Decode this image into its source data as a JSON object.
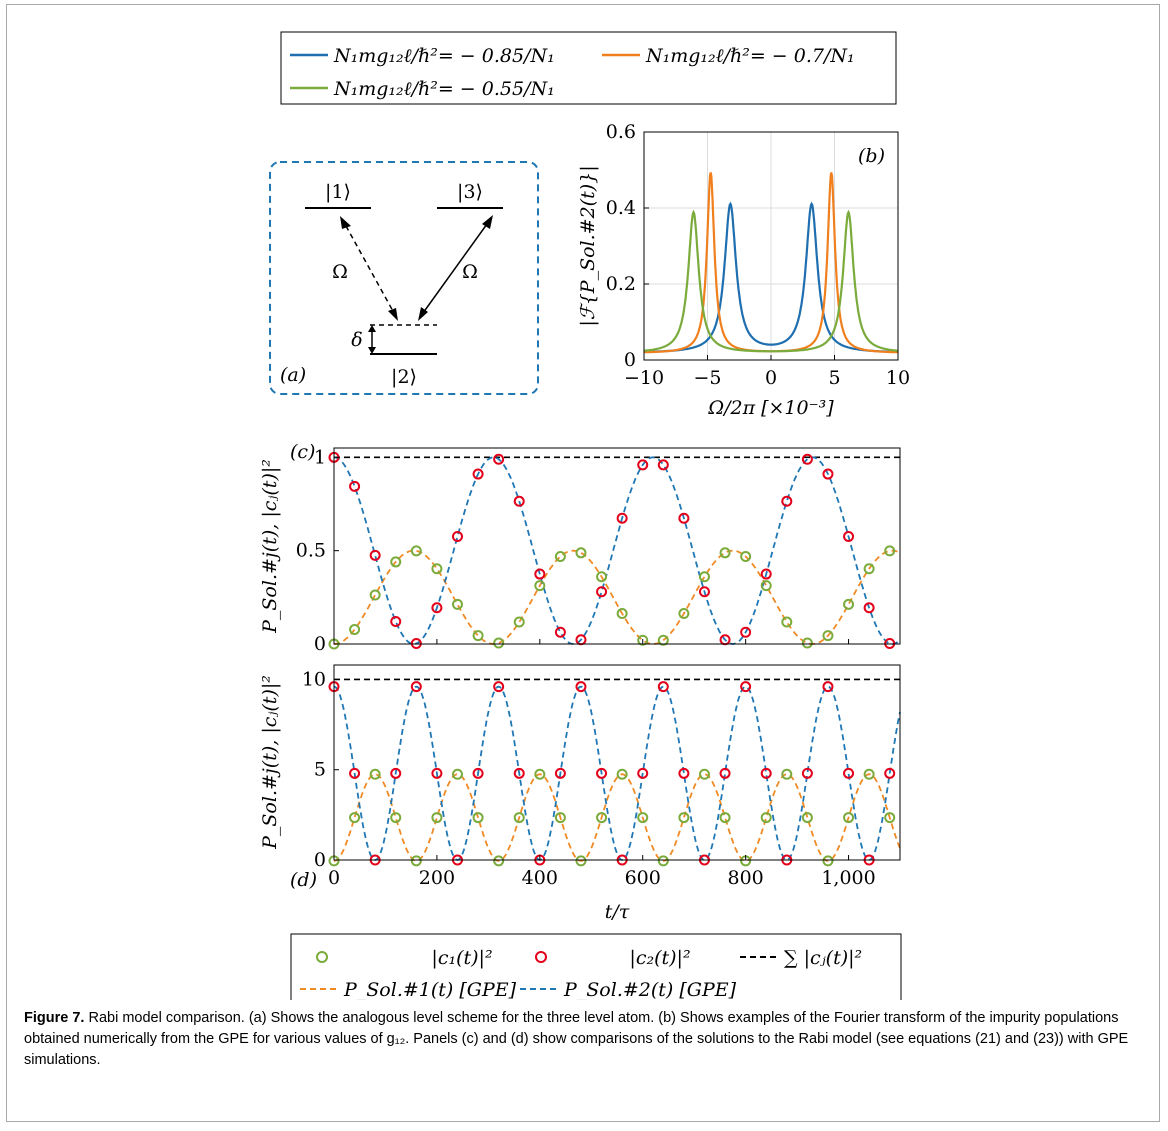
{
  "colors": {
    "blue": "#1f6fb0",
    "orange": "#f07f1d",
    "green": "#7aab3c",
    "red": "#e3001b",
    "dashed_blue": "#1f77b4",
    "dashed_orange": "#f08a24",
    "black": "#000000"
  },
  "legend_top": {
    "entries": [
      {
        "label": "N₁mg₁₂ℓ/ℏ²= − 0.85/N₁",
        "color": "blue"
      },
      {
        "label": "N₁mg₁₂ℓ/ℏ²= − 0.7/N₁",
        "color": "orange"
      },
      {
        "label": "N₁mg₁₂ℓ/ℏ²= − 0.55/N₁",
        "color": "green"
      }
    ]
  },
  "panel_a": {
    "tag": "(a)",
    "level1": "|1⟩",
    "level2": "|2⟩",
    "level3": "|3⟩",
    "omega_left": "Ω",
    "omega_right": "Ω",
    "delta": "δ"
  },
  "legend_bottom": {
    "c1": "|c₁(t)|²",
    "c2": "|c₂(t)|²",
    "sum": "∑ |cⱼ(t)|²",
    "p1": "P_Sol.#1(t) [GPE]",
    "p2": "P_Sol.#2(t) [GPE]"
  },
  "caption": {
    "bold": "Figure 7.",
    "text": "Rabi model comparison. (a) Shows the analogous level scheme for the three level atom. (b) Shows examples of the Fourier transform of the impurity populations obtained numerically from the GPE for various values of g₁₂. Panels (c) and (d) show comparisons of the solutions to the Rabi model (see equations (21) and (23)) with GPE simulations."
  },
  "chart_data": [
    {
      "id": "b",
      "type": "line",
      "tag": "(b)",
      "xlabel": "Ω/2π [×10⁻³]",
      "ylabel": "|ℱ{P_Sol.#2(t)}|",
      "xlim": [
        -10,
        10
      ],
      "ylim": [
        0,
        0.6
      ],
      "xticks": [
        -10,
        -5,
        0,
        5,
        10
      ],
      "yticks": [
        0,
        0.2,
        0.4,
        0.6
      ],
      "ytick_labels": [
        "0",
        "0.2",
        "0.4",
        "0.6"
      ],
      "grid": true,
      "series": [
        {
          "name": "N₁mg₁₂ℓ/ℏ²= − 0.85/N₁",
          "color": "blue",
          "peak": 3.2,
          "height": 0.39,
          "width": 0.55
        },
        {
          "name": "N₁mg₁₂ℓ/ℏ²= − 0.7/N₁",
          "color": "orange",
          "peak": 4.75,
          "height": 0.475,
          "width": 0.35
        },
        {
          "name": "N₁mg₁₂ℓ/ℏ²= − 0.55/N₁",
          "color": "green",
          "peak": 6.1,
          "height": 0.37,
          "width": 0.5
        }
      ]
    },
    {
      "id": "c",
      "type": "line",
      "tag": "(c)",
      "ylabel": "P_Sol.#j(t), |cⱼ(t)|²",
      "xlim": [
        0,
        1100
      ],
      "ylim": [
        0,
        1.05
      ],
      "yticks": [
        0,
        0.5,
        1
      ],
      "ytick_labels": [
        "0",
        "0.5",
        "1"
      ],
      "grid": false,
      "period": 310,
      "amplitude1": 0.5,
      "sum": 1,
      "sample_step": 40,
      "series_names": [
        "|c₁(t)|²",
        "|c₂(t)|²",
        "∑ |cⱼ(t)|²",
        "P_Sol.#1(t) [GPE]",
        "P_Sol.#2(t) [GPE]"
      ]
    },
    {
      "id": "d",
      "type": "line",
      "tag": "(d)",
      "xlabel": "t/τ",
      "ylabel": "P_Sol.#j(t), |cⱼ(t)|²",
      "xlim": [
        0,
        1100
      ],
      "ylim": [
        0,
        10.8
      ],
      "xticks": [
        0,
        200,
        400,
        600,
        800,
        1000
      ],
      "xtick_labels": [
        "0",
        "200",
        "400",
        "600",
        "800",
        "1,000"
      ],
      "yticks": [
        0,
        5,
        10
      ],
      "ytick_labels": [
        "0",
        "5",
        "10"
      ],
      "grid": false,
      "period": 160,
      "amplitude2": 9.6,
      "sum": 10,
      "sample_step": 40,
      "series_names": [
        "|c₁(t)|²",
        "|c₂(t)|²",
        "∑ |cⱼ(t)|²",
        "P_Sol.#1(t) [GPE]",
        "P_Sol.#2(t) [GPE]"
      ]
    }
  ]
}
